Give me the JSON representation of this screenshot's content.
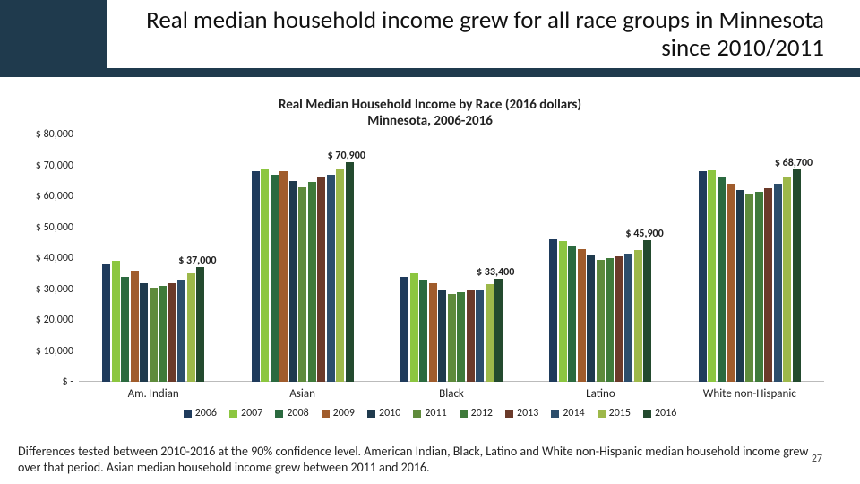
{
  "title": "Real median household income grew for all race groups in Minnesota  since 2010/2011",
  "subtitle_line1": "Real Median Household Income by Race (2016 dollars)",
  "subtitle_line2": "Minnesota, 2006-2016",
  "footnote": "Differences tested between 2010-2016 at the 90% confidence level. American Indian, Black, Latino and White non-Hispanic median household income grew over that period. Asian median household income grew between 2011 and 2016.",
  "page_number": "27",
  "chart": {
    "type": "bar",
    "ymax": 80000,
    "ymin": 0,
    "ytick_step": 10000,
    "yticks": [
      "$ 80,000",
      "$ 70,000",
      "$ 60,000",
      "$ 50,000",
      "$ 40,000",
      "$ 30,000",
      "$ 20,000",
      "$ 10,000",
      "$ -"
    ],
    "categories": [
      "Am. Indian",
      "Asian",
      "Black",
      "Latino",
      "White non-Hispanic"
    ],
    "series": [
      {
        "year": "2006",
        "color": "#1f3b5c"
      },
      {
        "year": "2007",
        "color": "#8cc640"
      },
      {
        "year": "2008",
        "color": "#2b6a3f"
      },
      {
        "year": "2009",
        "color": "#a05c2c"
      },
      {
        "year": "2010",
        "color": "#1f3a4d"
      },
      {
        "year": "2011",
        "color": "#5f8b3c"
      },
      {
        "year": "2012",
        "color": "#3f7a3a"
      },
      {
        "year": "2013",
        "color": "#6b3a2a"
      },
      {
        "year": "2014",
        "color": "#2c4d6b"
      },
      {
        "year": "2015",
        "color": "#9db84a"
      },
      {
        "year": "2016",
        "color": "#234a2e"
      }
    ],
    "values": [
      [
        38000,
        39000,
        34000,
        36000,
        32000,
        30500,
        31000,
        32000,
        33000,
        35000,
        37000
      ],
      [
        68000,
        69000,
        67000,
        68000,
        65000,
        63000,
        64500,
        66000,
        67000,
        69000,
        70900
      ],
      [
        34000,
        35000,
        33000,
        32000,
        30000,
        28500,
        29000,
        29500,
        30000,
        31500,
        33400
      ],
      [
        46000,
        45500,
        44000,
        43000,
        41000,
        39500,
        40000,
        40500,
        41500,
        42500,
        45900
      ],
      [
        68000,
        68500,
        66000,
        64000,
        62000,
        61000,
        61500,
        62500,
        64000,
        66500,
        68700
      ]
    ],
    "callouts": [
      {
        "text": "$ 37,000",
        "group": 0,
        "bar": 10,
        "dy": -14
      },
      {
        "text": "$ 70,900",
        "group": 1,
        "bar": 10,
        "dy": -14
      },
      {
        "text": "$ 33,400",
        "group": 2,
        "bar": 10,
        "dy": -14
      },
      {
        "text": "$ 45,900",
        "group": 3,
        "bar": 10,
        "dy": -14
      },
      {
        "text": "$ 68,700",
        "group": 4,
        "bar": 10,
        "dy": -14
      }
    ]
  }
}
